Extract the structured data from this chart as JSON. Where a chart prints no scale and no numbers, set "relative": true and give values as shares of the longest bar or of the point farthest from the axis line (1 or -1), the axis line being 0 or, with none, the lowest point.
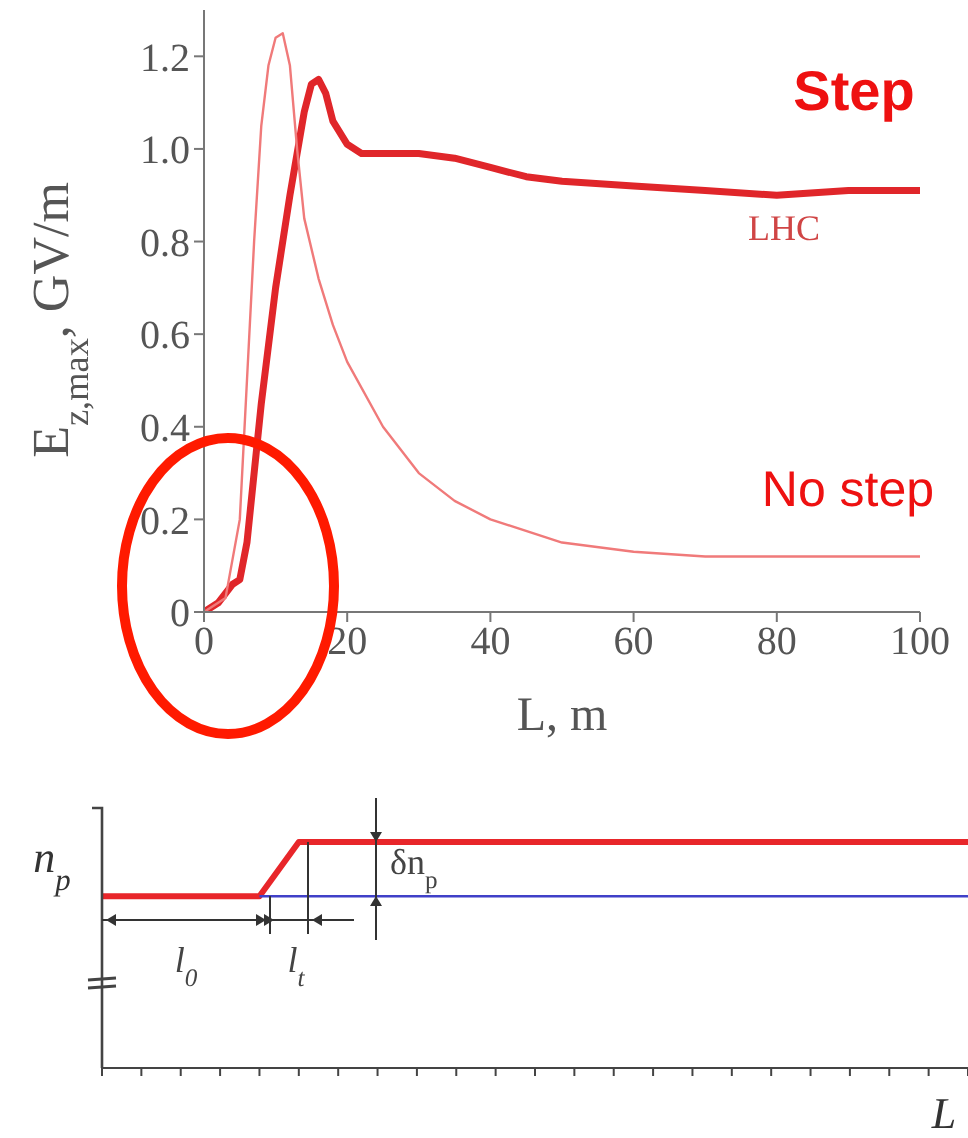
{
  "chart_data": [
    {
      "type": "line",
      "xlabel": "L, m",
      "ylabel": "E$_{z,max}$, GV/m",
      "xlim": [
        0,
        100
      ],
      "xticks": [
        0,
        20,
        40,
        60,
        80,
        100
      ],
      "ylim": [
        0,
        1.3
      ],
      "yticks": [
        0,
        0.2,
        0.4,
        0.6,
        0.8,
        {
          "value": 1,
          "label": "1.0"
        },
        1.2
      ],
      "marker": "none",
      "line_style": "solid",
      "annotations": [
        "LHC"
      ],
      "series": [
        {
          "name": "Step",
          "color": "#e0262a",
          "x": [
            0,
            2,
            4,
            5,
            6,
            8,
            10,
            12,
            14,
            15,
            16,
            17,
            18,
            20,
            22,
            25,
            30,
            35,
            40,
            45,
            50,
            60,
            70,
            80,
            90,
            100
          ],
          "values": [
            0,
            0.02,
            0.06,
            0.07,
            0.15,
            0.45,
            0.7,
            0.9,
            1.08,
            1.14,
            1.15,
            1.12,
            1.06,
            1.01,
            0.99,
            0.99,
            0.99,
            0.98,
            0.96,
            0.94,
            0.93,
            0.92,
            0.91,
            0.9,
            0.91,
            0.91
          ]
        },
        {
          "name": "No step",
          "color": "#f07a7a",
          "x": [
            0,
            3,
            5,
            6,
            7,
            8,
            9,
            10,
            11,
            12,
            13,
            14,
            16,
            18,
            20,
            25,
            30,
            35,
            40,
            50,
            60,
            70,
            80,
            90,
            100
          ],
          "values": [
            0,
            0.03,
            0.2,
            0.5,
            0.8,
            1.05,
            1.18,
            1.24,
            1.25,
            1.18,
            1,
            0.85,
            0.72,
            0.62,
            0.54,
            0.4,
            0.3,
            0.24,
            0.2,
            0.15,
            0.13,
            0.12,
            0.12,
            0.12,
            0.12
          ]
        }
      ]
    },
    {
      "type": "line",
      "relative": true,
      "xlabel": "L",
      "ylabel": "n$_{p}$",
      "marker": "none",
      "line_style": "solid",
      "annotations": [
        "l$_{0}$",
        "l$_{t}$",
        "δn$_{p}$"
      ],
      "categories": [
        null,
        null,
        null,
        null,
        null,
        null,
        null,
        null,
        null,
        null,
        null,
        null,
        null,
        null,
        null,
        null,
        null,
        null,
        null,
        null,
        null,
        null,
        null
      ],
      "series": [
        {
          "color": "#e8262a",
          "values": [
            0.76,
            0.76,
            0.76,
            0.76,
            0.76,
            1,
            1,
            1,
            1,
            1,
            1,
            1,
            1,
            1,
            1,
            1,
            1,
            1,
            1,
            1,
            1,
            1,
            1
          ]
        },
        {
          "color": "#4040c8",
          "values": [
            null,
            null,
            null,
            null,
            0.76,
            0.76,
            0.76,
            0.76,
            0.76,
            0.76,
            0.76,
            0.76,
            0.76,
            0.76,
            0.76,
            0.76,
            0.76,
            0.76,
            0.76,
            0.76,
            0.76,
            0.76,
            0.76
          ]
        }
      ]
    }
  ]
}
